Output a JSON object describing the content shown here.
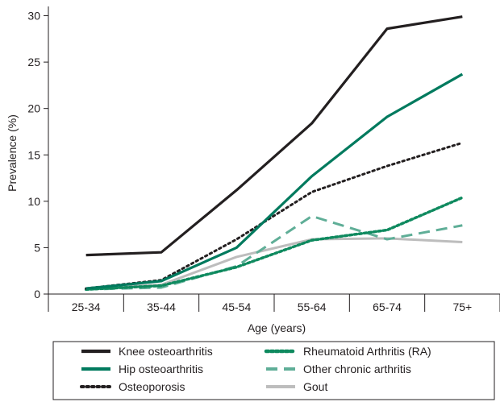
{
  "chart_data": {
    "type": "line",
    "title": "",
    "xlabel": "Age (years)",
    "ylabel": "Prevalence (%)",
    "categories": [
      "25-34",
      "35-44",
      "45-54",
      "55-64",
      "65-74",
      "75+"
    ],
    "ylim": [
      0,
      31
    ],
    "yticks": [
      0,
      5,
      10,
      15,
      20,
      25,
      30
    ],
    "grid": false,
    "legend_position": "bottom",
    "series": [
      {
        "name": "Knee osteoarthritis",
        "values": [
          4.2,
          4.5,
          11.2,
          18.4,
          28.6,
          29.9
        ],
        "color": "#231f20",
        "style": "solid"
      },
      {
        "name": "Hip osteoarthritis",
        "values": [
          0.6,
          1.4,
          5.0,
          12.7,
          19.1,
          23.7
        ],
        "color": "#007a5e",
        "style": "solid"
      },
      {
        "name": "Osteoporosis",
        "values": [
          0.6,
          1.5,
          5.9,
          11.0,
          13.8,
          16.3
        ],
        "color": "#231f20",
        "style": "dotted"
      },
      {
        "name": "Rheumatoid Arthritis (RA)",
        "values": [
          0.5,
          0.9,
          2.9,
          5.8,
          6.9,
          10.4
        ],
        "color": "#0f8a5f",
        "style": "dotted"
      },
      {
        "name": "Other chronic arthritis",
        "values": [
          0.5,
          0.7,
          3.0,
          8.4,
          5.9,
          7.4
        ],
        "color": "#5fae97",
        "style": "dashed"
      },
      {
        "name": "Gout",
        "values": [
          0.6,
          1.0,
          4.0,
          5.9,
          6.0,
          5.6
        ],
        "color": "#bdbdbd",
        "style": "solid"
      }
    ]
  }
}
